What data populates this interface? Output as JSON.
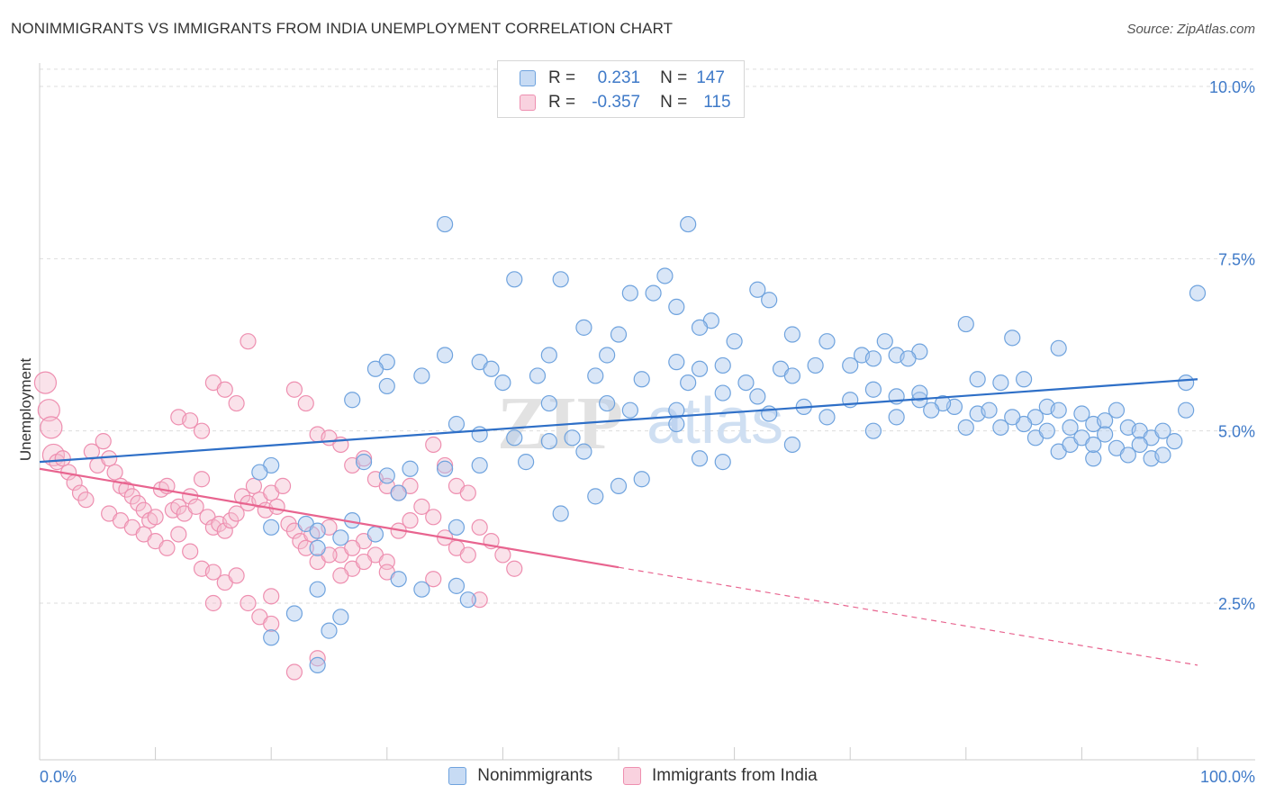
{
  "header": {
    "title": "NONIMMIGRANTS VS IMMIGRANTS FROM INDIA UNEMPLOYMENT CORRELATION CHART",
    "source": "Source: ZipAtlas.com"
  },
  "watermark": {
    "zip": "ZIP",
    "atlas": "atlas"
  },
  "stats_legend": {
    "rows": [
      {
        "r_label": "R =",
        "r_value": "0.231",
        "n_label": "N =",
        "n_value": "147"
      },
      {
        "r_label": "R =",
        "r_value": "-0.357",
        "n_label": "N =",
        "n_value": "115"
      }
    ]
  },
  "colors": {
    "blue": "#6fa3de",
    "blue_line": "#2e6fc7",
    "blue_fill": "#aac8ee",
    "pink": "#ee8fb0",
    "pink_line": "#e8648f",
    "pink_fill": "#f5bfd1",
    "tick_text": "#3f7ac8",
    "grid": "#dddddd"
  },
  "chart_data": {
    "type": "scatter",
    "title": "NONIMMIGRANTS VS IMMIGRANTS FROM INDIA UNEMPLOYMENT CORRELATION CHART",
    "xlabel": "",
    "ylabel": "Unemployment",
    "xlim": [
      0,
      100
    ],
    "ylim": [
      0,
      10.5
    ],
    "x_ticks": [
      "0.0%",
      "100.0%"
    ],
    "y_ticks": [
      {
        "value": 2.5,
        "label": "2.5%"
      },
      {
        "value": 5.0,
        "label": "5.0%"
      },
      {
        "value": 7.5,
        "label": "7.5%"
      },
      {
        "value": 10.0,
        "label": "10.0%"
      }
    ],
    "grid": true,
    "legend_position": "bottom-center",
    "series": [
      {
        "name": "Nonimmigrants",
        "color": "#6fa3de",
        "trend": {
          "x": [
            0,
            100
          ],
          "y": [
            4.55,
            5.75
          ]
        },
        "points": [
          [
            35,
            8.0
          ],
          [
            56,
            8.0
          ],
          [
            41,
            7.2
          ],
          [
            45,
            7.2
          ],
          [
            54,
            7.25
          ],
          [
            51,
            7.0
          ],
          [
            53,
            7.0
          ],
          [
            55,
            6.8
          ],
          [
            63,
            6.9
          ],
          [
            62,
            7.05
          ],
          [
            47,
            6.5
          ],
          [
            50,
            6.4
          ],
          [
            58,
            6.6
          ],
          [
            57,
            6.5
          ],
          [
            60,
            6.3
          ],
          [
            65,
            6.4
          ],
          [
            73,
            6.3
          ],
          [
            80,
            6.55
          ],
          [
            84,
            6.35
          ],
          [
            68,
            6.3
          ],
          [
            71,
            6.1
          ],
          [
            76,
            6.15
          ],
          [
            35,
            6.1
          ],
          [
            30,
            6.0
          ],
          [
            38,
            6.0
          ],
          [
            44,
            6.1
          ],
          [
            49,
            6.1
          ],
          [
            55,
            6.0
          ],
          [
            59,
            5.95
          ],
          [
            64,
            5.9
          ],
          [
            67,
            5.95
          ],
          [
            70,
            5.95
          ],
          [
            72,
            6.05
          ],
          [
            74,
            6.1
          ],
          [
            75,
            6.05
          ],
          [
            88,
            6.2
          ],
          [
            65,
            5.8
          ],
          [
            61,
            5.7
          ],
          [
            57,
            5.9
          ],
          [
            52,
            5.75
          ],
          [
            48,
            5.8
          ],
          [
            43,
            5.8
          ],
          [
            40,
            5.7
          ],
          [
            39,
            5.9
          ],
          [
            33,
            5.8
          ],
          [
            29,
            5.9
          ],
          [
            30,
            5.65
          ],
          [
            27,
            5.45
          ],
          [
            44,
            5.4
          ],
          [
            49,
            5.4
          ],
          [
            51,
            5.3
          ],
          [
            55,
            5.3
          ],
          [
            63,
            5.25
          ],
          [
            74,
            5.2
          ],
          [
            79,
            5.35
          ],
          [
            81,
            5.25
          ],
          [
            82,
            5.3
          ],
          [
            86,
            5.2
          ],
          [
            87,
            5.35
          ],
          [
            88,
            5.3
          ],
          [
            90,
            5.25
          ],
          [
            91,
            5.1
          ],
          [
            92,
            5.15
          ],
          [
            93,
            5.3
          ],
          [
            94,
            5.05
          ],
          [
            95,
            5.0
          ],
          [
            96,
            4.9
          ],
          [
            97,
            5.0
          ],
          [
            98,
            4.85
          ],
          [
            99,
            5.3
          ],
          [
            85,
            5.1
          ],
          [
            89,
            5.05
          ],
          [
            83,
            5.05
          ],
          [
            84,
            5.2
          ],
          [
            86,
            4.9
          ],
          [
            87,
            5.0
          ],
          [
            88,
            4.7
          ],
          [
            89,
            4.8
          ],
          [
            90,
            4.9
          ],
          [
            91,
            4.6
          ],
          [
            92,
            4.95
          ],
          [
            93,
            4.75
          ],
          [
            94,
            4.65
          ],
          [
            95,
            4.8
          ],
          [
            96,
            4.6
          ],
          [
            97,
            4.65
          ],
          [
            99,
            5.7
          ],
          [
            100,
            7.0
          ],
          [
            76,
            5.45
          ],
          [
            78,
            5.4
          ],
          [
            81,
            5.75
          ],
          [
            83,
            5.7
          ],
          [
            85,
            5.75
          ],
          [
            76,
            5.55
          ],
          [
            74,
            5.5
          ],
          [
            66,
            5.35
          ],
          [
            70,
            5.45
          ],
          [
            72,
            5.6
          ],
          [
            62,
            5.5
          ],
          [
            59,
            5.55
          ],
          [
            56,
            5.7
          ],
          [
            36,
            5.1
          ],
          [
            38,
            4.95
          ],
          [
            41,
            4.9
          ],
          [
            44,
            4.85
          ],
          [
            46,
            4.9
          ],
          [
            47,
            4.7
          ],
          [
            42,
            4.55
          ],
          [
            38,
            4.5
          ],
          [
            35,
            4.45
          ],
          [
            32,
            4.45
          ],
          [
            28,
            4.55
          ],
          [
            30,
            4.35
          ],
          [
            31,
            4.1
          ],
          [
            27,
            3.7
          ],
          [
            23,
            3.65
          ],
          [
            20,
            3.6
          ],
          [
            24,
            3.55
          ],
          [
            26,
            3.45
          ],
          [
            29,
            3.5
          ],
          [
            36,
            3.6
          ],
          [
            45,
            3.8
          ],
          [
            57,
            4.6
          ],
          [
            59,
            4.55
          ],
          [
            65,
            4.8
          ],
          [
            52,
            4.3
          ],
          [
            50,
            4.2
          ],
          [
            48,
            4.05
          ],
          [
            20,
            4.5
          ],
          [
            19,
            4.4
          ],
          [
            24,
            3.3
          ],
          [
            31,
            2.85
          ],
          [
            33,
            2.7
          ],
          [
            36,
            2.75
          ],
          [
            37,
            2.55
          ],
          [
            24,
            2.7
          ],
          [
            22,
            2.35
          ],
          [
            26,
            2.3
          ],
          [
            25,
            2.1
          ],
          [
            24,
            1.6
          ],
          [
            20,
            2.0
          ],
          [
            55,
            5.1
          ],
          [
            68,
            5.2
          ],
          [
            72,
            5.0
          ],
          [
            77,
            5.3
          ],
          [
            80,
            5.05
          ],
          [
            91,
            4.8
          ]
        ]
      },
      {
        "name": "Immigrants from India",
        "color": "#ee8fb0",
        "trend": {
          "x": [
            0,
            50
          ],
          "y": [
            4.45,
            3.02
          ]
        },
        "trend_dashed": {
          "x": [
            50,
            100
          ],
          "y": [
            3.02,
            1.6
          ]
        },
        "points": [
          [
            0.5,
            5.7
          ],
          [
            0.8,
            5.3
          ],
          [
            1.0,
            5.05
          ],
          [
            1.2,
            4.65
          ],
          [
            1.5,
            4.55
          ],
          [
            2,
            4.6
          ],
          [
            2.5,
            4.4
          ],
          [
            3,
            4.25
          ],
          [
            3.5,
            4.1
          ],
          [
            4,
            4.0
          ],
          [
            4.5,
            4.7
          ],
          [
            5,
            4.5
          ],
          [
            5.5,
            4.85
          ],
          [
            6,
            4.6
          ],
          [
            6.5,
            4.4
          ],
          [
            7,
            4.2
          ],
          [
            7.5,
            4.15
          ],
          [
            8,
            4.05
          ],
          [
            8.5,
            3.95
          ],
          [
            9,
            3.85
          ],
          [
            9.5,
            3.7
          ],
          [
            10,
            3.75
          ],
          [
            10.5,
            4.15
          ],
          [
            11,
            4.2
          ],
          [
            11.5,
            3.85
          ],
          [
            12,
            3.9
          ],
          [
            12.5,
            3.8
          ],
          [
            13,
            4.05
          ],
          [
            13.5,
            3.9
          ],
          [
            14,
            4.3
          ],
          [
            14.5,
            3.75
          ],
          [
            15,
            3.6
          ],
          [
            15.5,
            3.65
          ],
          [
            16,
            3.55
          ],
          [
            16.5,
            3.7
          ],
          [
            17,
            3.8
          ],
          [
            17.5,
            4.05
          ],
          [
            18,
            3.95
          ],
          [
            18.5,
            4.2
          ],
          [
            19,
            4.0
          ],
          [
            19.5,
            3.85
          ],
          [
            20,
            4.1
          ],
          [
            20.5,
            3.9
          ],
          [
            21,
            4.2
          ],
          [
            21.5,
            3.65
          ],
          [
            22,
            3.55
          ],
          [
            22.5,
            3.4
          ],
          [
            23,
            3.3
          ],
          [
            23.5,
            3.5
          ],
          [
            24,
            3.1
          ],
          [
            25,
            3.6
          ],
          [
            26,
            3.2
          ],
          [
            27,
            3.0
          ],
          [
            28,
            3.4
          ],
          [
            29,
            3.2
          ],
          [
            30,
            3.1
          ],
          [
            31,
            3.55
          ],
          [
            32,
            3.7
          ],
          [
            33,
            3.9
          ],
          [
            34,
            3.75
          ],
          [
            35,
            3.45
          ],
          [
            36,
            3.3
          ],
          [
            37,
            3.2
          ],
          [
            38,
            3.6
          ],
          [
            39,
            3.4
          ],
          [
            40,
            3.2
          ],
          [
            41,
            3.0
          ],
          [
            12,
            5.2
          ],
          [
            13,
            5.15
          ],
          [
            14,
            5.0
          ],
          [
            15,
            5.7
          ],
          [
            16,
            5.6
          ],
          [
            17,
            5.4
          ],
          [
            18,
            6.3
          ],
          [
            22,
            5.6
          ],
          [
            23,
            5.4
          ],
          [
            24,
            4.95
          ],
          [
            25,
            4.9
          ],
          [
            26,
            4.8
          ],
          [
            27,
            4.5
          ],
          [
            28,
            4.6
          ],
          [
            29,
            4.3
          ],
          [
            30,
            4.2
          ],
          [
            31,
            4.1
          ],
          [
            32,
            4.2
          ],
          [
            34,
            4.8
          ],
          [
            35,
            4.5
          ],
          [
            36,
            4.2
          ],
          [
            37,
            4.1
          ],
          [
            6,
            3.8
          ],
          [
            7,
            3.7
          ],
          [
            8,
            3.6
          ],
          [
            9,
            3.5
          ],
          [
            10,
            3.4
          ],
          [
            11,
            3.3
          ],
          [
            12,
            3.5
          ],
          [
            13,
            3.25
          ],
          [
            14,
            3.0
          ],
          [
            15,
            2.95
          ],
          [
            16,
            2.8
          ],
          [
            17,
            2.9
          ],
          [
            18,
            2.5
          ],
          [
            19,
            2.3
          ],
          [
            20,
            2.2
          ],
          [
            22,
            1.5
          ],
          [
            24,
            1.7
          ],
          [
            30,
            2.95
          ],
          [
            34,
            2.85
          ],
          [
            38,
            2.55
          ],
          [
            25,
            3.2
          ],
          [
            26,
            2.9
          ],
          [
            27,
            3.3
          ],
          [
            28,
            3.1
          ],
          [
            20,
            2.6
          ],
          [
            15,
            2.5
          ]
        ]
      }
    ]
  },
  "bottom_legend": [
    {
      "label": "Nonimmigrants"
    },
    {
      "label": "Immigrants from India"
    }
  ]
}
